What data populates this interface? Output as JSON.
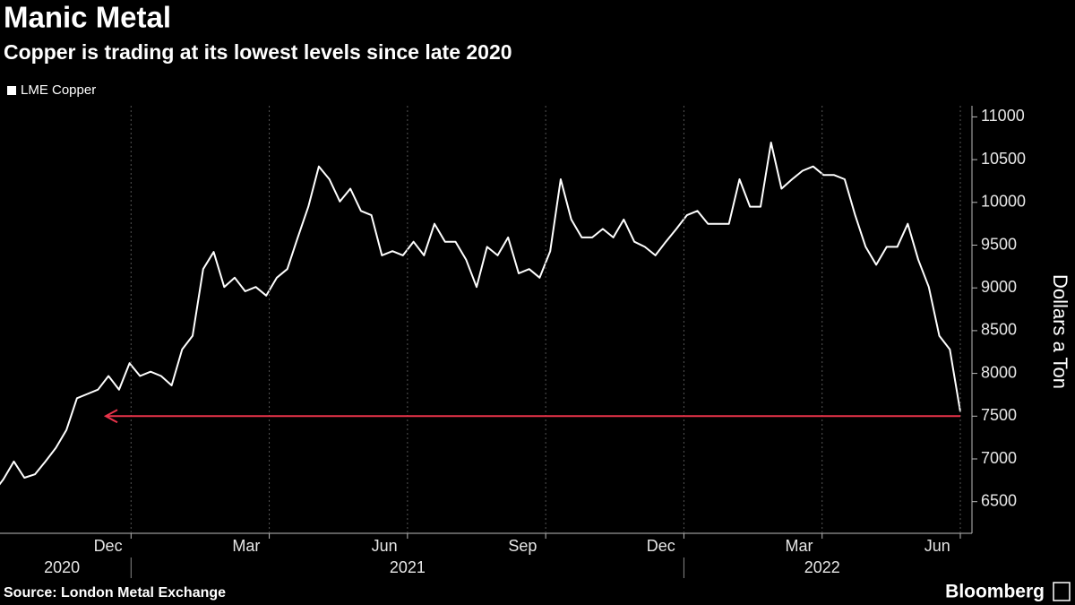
{
  "chart_data": {
    "type": "line",
    "title": "Manic Metal",
    "subtitle": "Copper is trading at its lowest levels since late 2020",
    "y_label": "Dollars a Ton",
    "source": "Source: London Metal Exchange",
    "brand": "Bloomberg",
    "xlim": [
      "2020-10",
      "2022-07"
    ],
    "xticks": [
      {
        "value": "2020-12",
        "label": "Dec"
      },
      {
        "value": "2021-03",
        "label": "Mar"
      },
      {
        "value": "2021-06",
        "label": "Jun"
      },
      {
        "value": "2021-09",
        "label": "Sep"
      },
      {
        "value": "2021-12",
        "label": "Dec"
      },
      {
        "value": "2022-03",
        "label": "Mar"
      },
      {
        "value": "2022-06",
        "label": "Jun"
      }
    ],
    "xyears": [
      2020,
      2021,
      2022
    ],
    "ylim": [
      6130,
      11130
    ],
    "yticks": [
      6500,
      7000,
      7500,
      8000,
      8500,
      9000,
      9500,
      10000,
      10500,
      11000
    ],
    "grid": "x",
    "legend": "top-left",
    "reference_line": {
      "value": 7500,
      "color": "#e8334a"
    },
    "series": [
      {
        "name": "LME Copper",
        "color": "#ffffff",
        "values": [
          6600,
          6760,
          6970,
          6780,
          6820,
          6970,
          7130,
          7340,
          7710,
          7760,
          7810,
          7970,
          7810,
          8120,
          7970,
          8020,
          7970,
          7860,
          8280,
          8440,
          9220,
          9420,
          9010,
          9120,
          8960,
          9010,
          8910,
          9120,
          9220,
          9590,
          9950,
          10420,
          10270,
          10010,
          10160,
          9900,
          9850,
          9380,
          9430,
          9380,
          9540,
          9380,
          9750,
          9540,
          9540,
          9330,
          9010,
          9480,
          9380,
          9590,
          9170,
          9220,
          9120,
          9430,
          10270,
          9800,
          9590,
          9590,
          9690,
          9590,
          9800,
          9540,
          9480,
          9380,
          9540,
          9690,
          9850,
          9900,
          9750,
          9750,
          9750,
          10270,
          9950,
          9950,
          10700,
          10160,
          10270,
          10370,
          10420,
          10320,
          10320,
          10270,
          9850,
          9480,
          9270,
          9480,
          9480,
          9750,
          9330,
          9010,
          8440,
          8280,
          7550
        ]
      }
    ]
  }
}
